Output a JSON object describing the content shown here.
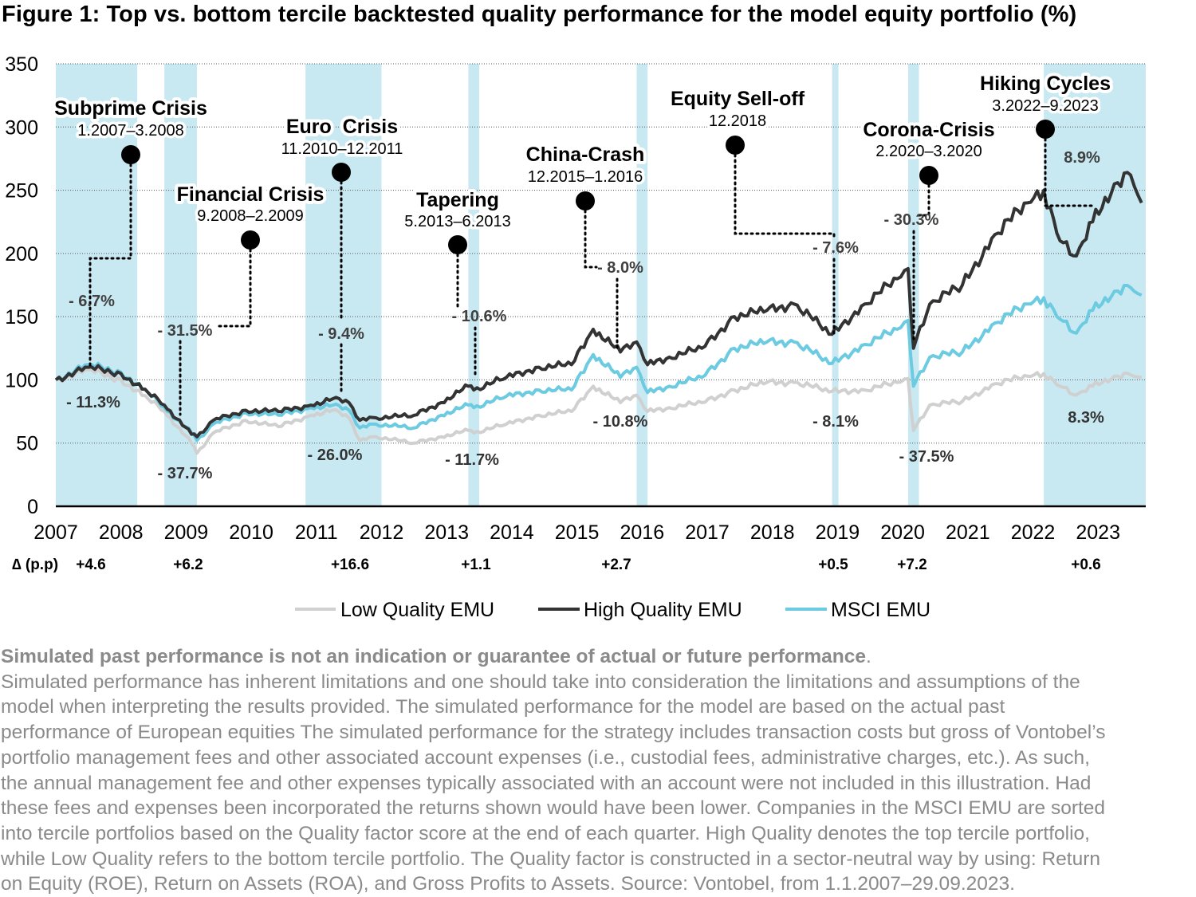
{
  "title": "Figure 1: Top vs. bottom tercile backtested quality performance for the model equity portfolio (%)",
  "chart_data": {
    "type": "line",
    "title": "Figure 1: Top vs. bottom tercile backtested quality performance for the model equity portfolio (%)",
    "xlabel": "",
    "ylabel": "",
    "ylim": [
      0,
      350
    ],
    "yticks": [
      "0",
      "50",
      "100",
      "150",
      "200",
      "250",
      "300",
      "350"
    ],
    "xlim": [
      "2007-01",
      "2023-09"
    ],
    "xticks": [
      "2007",
      "2008",
      "2009",
      "2010",
      "2011",
      "2012",
      "2013",
      "2014",
      "2015",
      "2016",
      "2017",
      "2018",
      "2019",
      "2020",
      "2021",
      "2022",
      "2023"
    ],
    "grid": "horizontal dotted",
    "legend_position": "bottom",
    "delta_row_label": "∆ (p.p)",
    "x": [
      "2007-01",
      "2007-07",
      "2008-01",
      "2008-06",
      "2008-09",
      "2009-02",
      "2009-03",
      "2009-06",
      "2009-12",
      "2010-06",
      "2010-12",
      "2011-04",
      "2011-07",
      "2011-09",
      "2011-12",
      "2012-07",
      "2012-12",
      "2013-05",
      "2013-06",
      "2013-12",
      "2014-06",
      "2014-12",
      "2015-04",
      "2015-09",
      "2015-12",
      "2016-02",
      "2016-06",
      "2016-12",
      "2017-06",
      "2017-12",
      "2018-05",
      "2018-12",
      "2019-06",
      "2019-12",
      "2020-02",
      "2020-03",
      "2020-06",
      "2020-12",
      "2021-06",
      "2021-12",
      "2022-03",
      "2022-06",
      "2022-09",
      "2022-12",
      "2023-04",
      "2023-07",
      "2023-09"
    ],
    "series": [
      {
        "name": "Low Quality EMU",
        "color": "#d0d0d0",
        "values": [
          100,
          108,
          100,
          85,
          75,
          50,
          42,
          58,
          68,
          63,
          72,
          76,
          70,
          52,
          55,
          50,
          55,
          60,
          58,
          65,
          72,
          75,
          95,
          82,
          88,
          75,
          78,
          82,
          92,
          98,
          98,
          91,
          92,
          98,
          101,
          60,
          80,
          83,
          97,
          103,
          105,
          95,
          88,
          95,
          103,
          104,
          102
        ]
      },
      {
        "name": "High Quality EMU",
        "color": "#333333",
        "values": [
          100,
          110,
          105,
          90,
          80,
          57,
          55,
          68,
          76,
          75,
          80,
          85,
          82,
          68,
          70,
          72,
          82,
          95,
          92,
          102,
          110,
          112,
          140,
          122,
          130,
          112,
          118,
          125,
          150,
          155,
          160,
          136,
          160,
          180,
          188,
          125,
          160,
          175,
          215,
          240,
          250,
          210,
          198,
          225,
          255,
          262,
          240
        ]
      },
      {
        "name": "MSCI EMU",
        "color": "#6ccbe0",
        "values": [
          100,
          112,
          106,
          90,
          78,
          58,
          52,
          65,
          74,
          72,
          78,
          80,
          76,
          62,
          65,
          62,
          72,
          80,
          78,
          87,
          92,
          92,
          120,
          102,
          110,
          90,
          95,
          102,
          125,
          130,
          130,
          113,
          128,
          140,
          147,
          95,
          118,
          122,
          145,
          160,
          165,
          148,
          137,
          155,
          170,
          173,
          167
        ]
      }
    ],
    "shaded_periods": [
      {
        "start": "2007-01",
        "end": "2008-03"
      },
      {
        "start": "2008-09",
        "end": "2009-02"
      },
      {
        "start": "2010-11",
        "end": "2011-12"
      },
      {
        "start": "2013-05",
        "end": "2013-06"
      },
      {
        "start": "2015-12",
        "end": "2016-01"
      },
      {
        "start": "2018-12",
        "end": "2018-12"
      },
      {
        "start": "2020-02",
        "end": "2020-03"
      },
      {
        "start": "2022-03",
        "end": "2023-09"
      }
    ],
    "shade_color": "#c8e9f2",
    "events": [
      {
        "name": "Subprime Crisis",
        "period": "1.2007–3.2008",
        "high_quality": "- 6.7%",
        "low_quality": "- 11.3%",
        "delta": "+4.6"
      },
      {
        "name": "Financial Crisis",
        "period": "9.2008–2.2009",
        "high_quality": "- 31.5%",
        "low_quality": "- 37.7%",
        "delta": "+6.2"
      },
      {
        "name": "Euro  Crisis",
        "period": "11.2010–12.2011",
        "high_quality": "- 9.4%",
        "low_quality": "- 26.0%",
        "delta": "+16.6"
      },
      {
        "name": "Tapering",
        "period": "5.2013–6.2013",
        "high_quality": "- 10.6%",
        "low_quality": "- 11.7%",
        "delta": "+1.1"
      },
      {
        "name": "China-Crash",
        "period": "12.2015–1.2016",
        "high_quality": "- 8.0%",
        "low_quality": "- 10.8%",
        "delta": "+2.7"
      },
      {
        "name": "Equity Sell-off",
        "period": "12.2018",
        "high_quality": "- 7.6%",
        "low_quality": "- 8.1%",
        "delta": "+0.5"
      },
      {
        "name": "Corona-Crisis",
        "period": "2.2020–3.2020",
        "high_quality": "- 30.3%",
        "low_quality": "- 37.5%",
        "delta": "+7.2"
      },
      {
        "name": "Hiking Cycles",
        "period": "3.2022–9.2023",
        "high_quality": "8.9%",
        "low_quality": "8.3%",
        "delta": "+0.6"
      }
    ]
  },
  "footnote": {
    "bold": "Simulated past performance is not an indication or guarantee of actual or future performance",
    "bold_end": ".",
    "lines": [
      "Simulated performance has inherent limitations and one should take into consideration the limitations and assumptions of the",
      "model when interpreting the results provided. The simulated performance for the model are based on the actual past",
      "performance of European equities The simulated performance for the strategy includes transaction costs but gross of Vontobel’s",
      "portfolio management fees and other associated account expenses (i.e., custodial fees, administrative charges, etc.). As such,",
      "the annual management fee and other expenses typically associated with an account were not included in this illustration. Had",
      "these fees and expenses been incorporated the returns shown would have been lower. Companies in the MSCI EMU are sorted",
      "into tercile portfolios based on the Quality factor score at the end of each quarter. High Quality denotes the top tercile portfolio,",
      "while Low Quality refers to the bottom tercile portfolio. The Quality factor is constructed in a sector-neutral way by using: Return",
      "on Equity (ROE), Return on Assets (ROA), and Gross Profits to Assets. Source: Vontobel, from 1.1.2007–29.09.2023."
    ]
  }
}
